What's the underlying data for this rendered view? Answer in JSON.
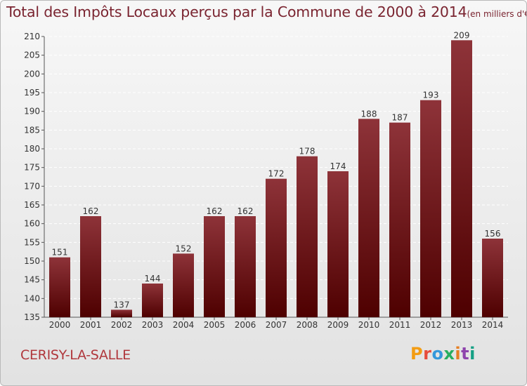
{
  "header": {
    "title": "Total des Impôts Locaux perçus par la Commune de 2000 à 2014",
    "unit": "(en milliers d'€)"
  },
  "footer": {
    "commune": "CERISY-LA-SALLE",
    "brand_letters": [
      "P",
      "r",
      "o",
      "x",
      "i",
      "t",
      "i"
    ],
    "brand_colors": [
      "#f39c12",
      "#e74c3c",
      "#3498db",
      "#27ae60",
      "#e67e22",
      "#8e44ad",
      "#16a085"
    ]
  },
  "colors": {
    "bar_top": "#8e3339",
    "bar_bottom": "#4e0000",
    "title": "#7a2430",
    "commune": "#b0373c",
    "grid": "#ffffff"
  },
  "chart_data": {
    "type": "bar",
    "title": "Total des Impôts Locaux perçus par la Commune de 2000 à 2014",
    "subtitle": "(en milliers d'€)",
    "categories": [
      "2000",
      "2001",
      "2002",
      "2003",
      "2004",
      "2005",
      "2006",
      "2007",
      "2008",
      "2009",
      "2010",
      "2011",
      "2012",
      "2013",
      "2014"
    ],
    "values": [
      151,
      162,
      137,
      144,
      152,
      162,
      162,
      172,
      178,
      174,
      188,
      187,
      193,
      209,
      156
    ],
    "ylim": [
      135,
      210
    ],
    "yticks": [
      135,
      140,
      145,
      150,
      155,
      160,
      165,
      170,
      175,
      180,
      185,
      190,
      195,
      200,
      205,
      210
    ],
    "grid": true,
    "data_labels": true,
    "xlabel": "",
    "ylabel": ""
  }
}
